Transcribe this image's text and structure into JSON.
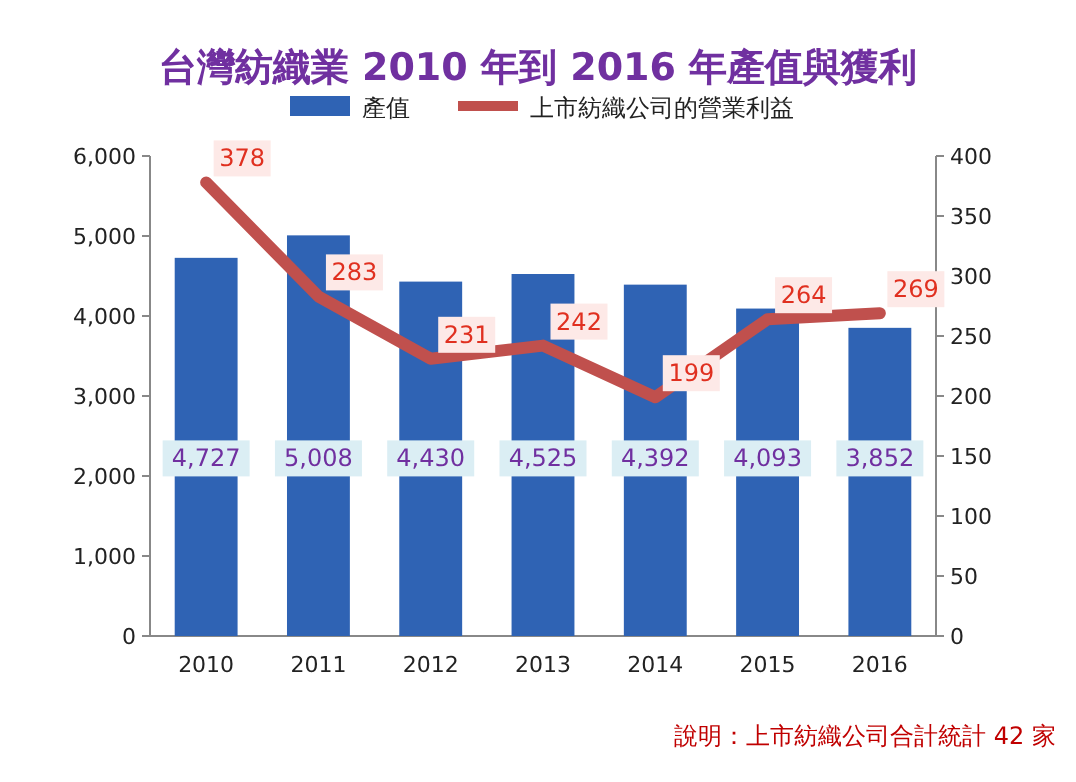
{
  "chart_data": {
    "type": "bar",
    "title": "台灣紡織業 2010 年到 2016 年產值與獲利",
    "categories": [
      "2010",
      "2011",
      "2012",
      "2013",
      "2014",
      "2015",
      "2016"
    ],
    "series": [
      {
        "name": "產值",
        "color": "#2f63b4",
        "values": [
          4727,
          5008,
          4430,
          4525,
          4392,
          4093,
          3852
        ],
        "value_labels": [
          "4,727",
          "5,008",
          "4,430",
          "4,525",
          "4,392",
          "4,093",
          "3,852"
        ]
      },
      {
        "name": "上市紡織公司的營業利益",
        "type": "line",
        "axis": "y2",
        "color": "#c0504d",
        "values": [
          378,
          283,
          231,
          242,
          199,
          264,
          269
        ]
      }
    ],
    "ylim": [
      0,
      6000
    ],
    "yticks": [
      {
        "value": 0,
        "label": "0"
      },
      {
        "value": 1000,
        "label": "1,000"
      },
      {
        "value": 2000,
        "label": "2,000"
      },
      {
        "value": 3000,
        "label": "3,000"
      },
      {
        "value": 4000,
        "label": "4,000"
      },
      {
        "value": 5000,
        "label": "5,000"
      },
      {
        "value": 6000,
        "label": "6,000"
      }
    ],
    "y2lim": [
      0,
      400
    ],
    "y2ticks": [
      0,
      50,
      100,
      150,
      200,
      250,
      300,
      350,
      400
    ],
    "data_labels": true,
    "legend": "top",
    "marker": "none",
    "line_style": "solid",
    "annotations": [
      "說明：上市紡織公司合計統計 42 家"
    ]
  }
}
